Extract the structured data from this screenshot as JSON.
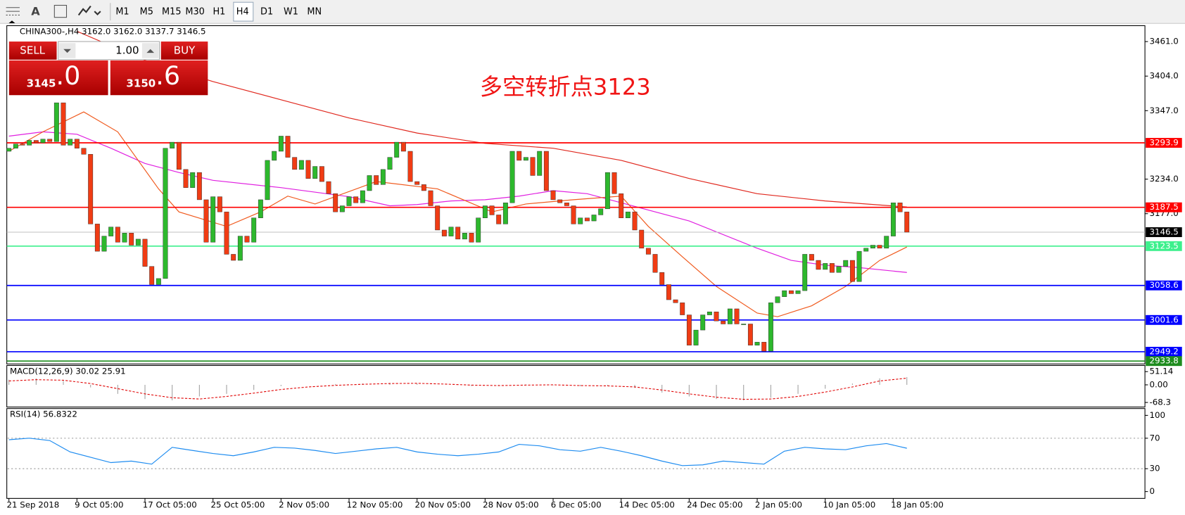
{
  "toolbar": {
    "timeframes": [
      "M1",
      "M5",
      "M15",
      "M30",
      "H1",
      "H4",
      "D1",
      "W1",
      "MN"
    ],
    "selected": 5,
    "text_tool": "A"
  },
  "trade_panel": {
    "sell": "SELL",
    "buy": "BUY",
    "volume": "1.00",
    "bid_big": "3145",
    "bid_small": ".0",
    "ask_big": "3150",
    "ask_small": ".6"
  },
  "annotation": "多空转折点3123",
  "chart_data": [
    {
      "type": "candlestick",
      "title": "CHINA300-,H4  3162.0 3162.0 3137.7 3146.5",
      "up_color": "#2db82d",
      "down_color": "#f03c14",
      "xlim": [
        -0.2,
        167
      ],
      "ylim": [
        2929,
        3486
      ],
      "xticks": [
        {
          "value": 0,
          "label": "21 Sep 2018"
        },
        {
          "value": 10,
          "label": "9 Oct 05:00"
        },
        {
          "value": 20,
          "label": "17 Oct 05:00"
        },
        {
          "value": 30,
          "label": "25 Oct 05:00"
        },
        {
          "value": 40,
          "label": "2 Nov 05:00"
        },
        {
          "value": 50,
          "label": "12 Nov 05:00"
        },
        {
          "value": 60,
          "label": "20 Nov 05:00"
        },
        {
          "value": 70,
          "label": "28 Nov 05:00"
        },
        {
          "value": 80,
          "label": "6 Dec 05:00"
        },
        {
          "value": 90,
          "label": "14 Dec 05:00"
        },
        {
          "value": 100,
          "label": "24 Dec 05:00"
        },
        {
          "value": 110,
          "label": "2 Jan 05:00"
        },
        {
          "value": 120,
          "label": "10 Jan 05:00"
        },
        {
          "value": 130,
          "label": "18 Jan 05:00"
        }
      ],
      "yticks": [
        {
          "value": 3461,
          "label": "3461.0"
        },
        {
          "value": 3404,
          "label": "3404.0"
        },
        {
          "value": 3347,
          "label": "3347.0"
        },
        {
          "value": 3234,
          "label": "3234.0"
        },
        {
          "value": 3177,
          "label": "3177.0"
        }
      ],
      "open": 3280,
      "values": [
        3285,
        3292,
        3290,
        3298,
        3294,
        3300,
        3296,
        3360,
        3290,
        3300,
        3285,
        3275,
        3160,
        3115,
        3140,
        3155,
        3130,
        3145,
        3125,
        3135,
        3090,
        3060,
        3070,
        3285,
        3295,
        3250,
        3220,
        3245,
        3200,
        3130,
        3205,
        3180,
        3110,
        3100,
        3140,
        3130,
        3170,
        3200,
        3265,
        3280,
        3305,
        3270,
        3250,
        3265,
        3235,
        3255,
        3230,
        3210,
        3180,
        3190,
        3205,
        3195,
        3215,
        3240,
        3225,
        3250,
        3270,
        3295,
        3280,
        3230,
        3225,
        3215,
        3190,
        3150,
        3140,
        3155,
        3135,
        3145,
        3130,
        3170,
        3190,
        3175,
        3160,
        3195,
        3280,
        3265,
        3270,
        3240,
        3280,
        3215,
        3200,
        3195,
        3190,
        3160,
        3170,
        3165,
        3175,
        3185,
        3245,
        3210,
        3170,
        3180,
        3150,
        3120,
        3110,
        3080,
        3060,
        3035,
        3030,
        3010,
        2960,
        2985,
        3010,
        3015,
        3000,
        2995,
        3020,
        2995,
        2995,
        2960,
        2965,
        2950,
        3030,
        3040,
        3050,
        3045,
        3050,
        3110,
        3100,
        3085,
        3095,
        3080,
        3090,
        3100,
        3065,
        3115,
        3120,
        3125,
        3120,
        3140,
        3195,
        3180,
        3146.5
      ],
      "lines": [
        {
          "color": "#e0281e",
          "x": [
            10,
            20,
            30,
            40,
            50,
            60,
            70,
            80,
            90,
            100,
            110,
            120,
            132
          ],
          "values": [
            3478,
            3430,
            3395,
            3365,
            3335,
            3310,
            3293,
            3285,
            3265,
            3235,
            3210,
            3198,
            3188
          ]
        },
        {
          "color": "#e020e0",
          "x": [
            0,
            5,
            10,
            15,
            20,
            25,
            30,
            40,
            50,
            56,
            60,
            65,
            70,
            75,
            80,
            85,
            90,
            100,
            110,
            115,
            120,
            125,
            132
          ],
          "values": [
            3305,
            3312,
            3308,
            3285,
            3260,
            3245,
            3232,
            3220,
            3205,
            3190,
            3192,
            3198,
            3200,
            3206,
            3215,
            3210,
            3195,
            3165,
            3120,
            3100,
            3092,
            3088,
            3080
          ]
        },
        {
          "color": "#f05a1e",
          "x": [
            0,
            5,
            11,
            16,
            22,
            25,
            32,
            37,
            41,
            45,
            54,
            63,
            71,
            76,
            83,
            90,
            94,
            99,
            104,
            110,
            113,
            118,
            123,
            128,
            132
          ],
          "values": [
            3280,
            3312,
            3345,
            3312,
            3218,
            3180,
            3156,
            3180,
            3206,
            3193,
            3230,
            3218,
            3180,
            3193,
            3200,
            3206,
            3156,
            3106,
            3057,
            3013,
            3007,
            3025,
            3057,
            3100,
            3122
          ]
        }
      ],
      "levels": [
        {
          "value": 3293.9,
          "label": "3293.9",
          "color": "#ff0000",
          "box": "#ff0000"
        },
        {
          "value": 3187.5,
          "label": "3187.5",
          "color": "#ff0000",
          "box": "#ff0000"
        },
        {
          "value": 3146.5,
          "label": "3146.5",
          "color": "#c0c0c0",
          "box": "#000000"
        },
        {
          "value": 3123.5,
          "label": "3123.5",
          "color": "#3cf08c",
          "box": "#3cf08c"
        },
        {
          "value": 3058.6,
          "label": "3058.6",
          "color": "#0000ff",
          "box": "#0000ff"
        },
        {
          "value": 3001.6,
          "label": "3001.6",
          "color": "#0000ff",
          "box": "#0000ff"
        },
        {
          "value": 2949.2,
          "label": "2949.2",
          "color": "#0000ff",
          "box": "#0000ff"
        },
        {
          "value": 2933.8,
          "label": "2933.8",
          "color": "#1e8c1e",
          "box": "#1e8c1e"
        }
      ]
    },
    {
      "type": "macd",
      "title": "MACD(12,26,9) 30.02 25.91",
      "xlim": [
        -0.2,
        167
      ],
      "ylim": [
        -83,
        72
      ],
      "yticks": [
        51.14,
        {
          "value": 0,
          "label": "0.00"
        },
        -68.3
      ],
      "color": "#a0a0a0",
      "signal_color": "#e00000",
      "x": [
        0,
        4,
        8,
        12,
        16,
        20,
        24,
        28,
        32,
        36,
        40,
        44,
        48,
        52,
        56,
        60,
        64,
        68,
        72,
        76,
        80,
        84,
        88,
        92,
        96,
        100,
        104,
        108,
        112,
        116,
        120,
        124,
        128,
        132
      ],
      "values": [
        20,
        25,
        15,
        -10,
        -35,
        -55,
        -60,
        -45,
        -35,
        -20,
        -5,
        0,
        3,
        5,
        8,
        5,
        0,
        -5,
        -3,
        2,
        -2,
        -5,
        -3,
        -12,
        -30,
        -45,
        -55,
        -60,
        -50,
        -35,
        -15,
        5,
        25,
        30
      ],
      "signal": [
        15,
        20,
        18,
        5,
        -15,
        -35,
        -50,
        -55,
        -45,
        -32,
        -18,
        -8,
        -2,
        2,
        5,
        6,
        3,
        -1,
        -3,
        -1,
        0,
        -3,
        -4,
        -8,
        -20,
        -35,
        -48,
        -56,
        -55,
        -45,
        -28,
        -8,
        15,
        25.91
      ]
    },
    {
      "type": "rsi",
      "title": "RSI(14) 56.8322",
      "xlim": [
        -0.2,
        167
      ],
      "ylim": [
        -8,
        108
      ],
      "yticks": [
        100,
        70,
        30,
        0
      ],
      "levels": [
        70,
        30
      ],
      "color": "#1e8cf0",
      "x": [
        0,
        3,
        6,
        9,
        12,
        15,
        18,
        21,
        24,
        27,
        30,
        33,
        36,
        39,
        42,
        45,
        48,
        51,
        54,
        57,
        60,
        63,
        66,
        69,
        72,
        75,
        78,
        81,
        84,
        87,
        90,
        93,
        96,
        99,
        102,
        105,
        108,
        111,
        114,
        117,
        120,
        123,
        126,
        129,
        132
      ],
      "values": [
        68,
        70,
        67,
        52,
        45,
        38,
        40,
        36,
        58,
        54,
        50,
        47,
        52,
        58,
        57,
        54,
        50,
        53,
        56,
        58,
        52,
        49,
        47,
        49,
        52,
        62,
        60,
        55,
        53,
        58,
        53,
        47,
        40,
        34,
        35,
        40,
        38,
        36,
        53,
        58,
        56,
        55,
        60,
        63,
        56.8322
      ]
    }
  ]
}
